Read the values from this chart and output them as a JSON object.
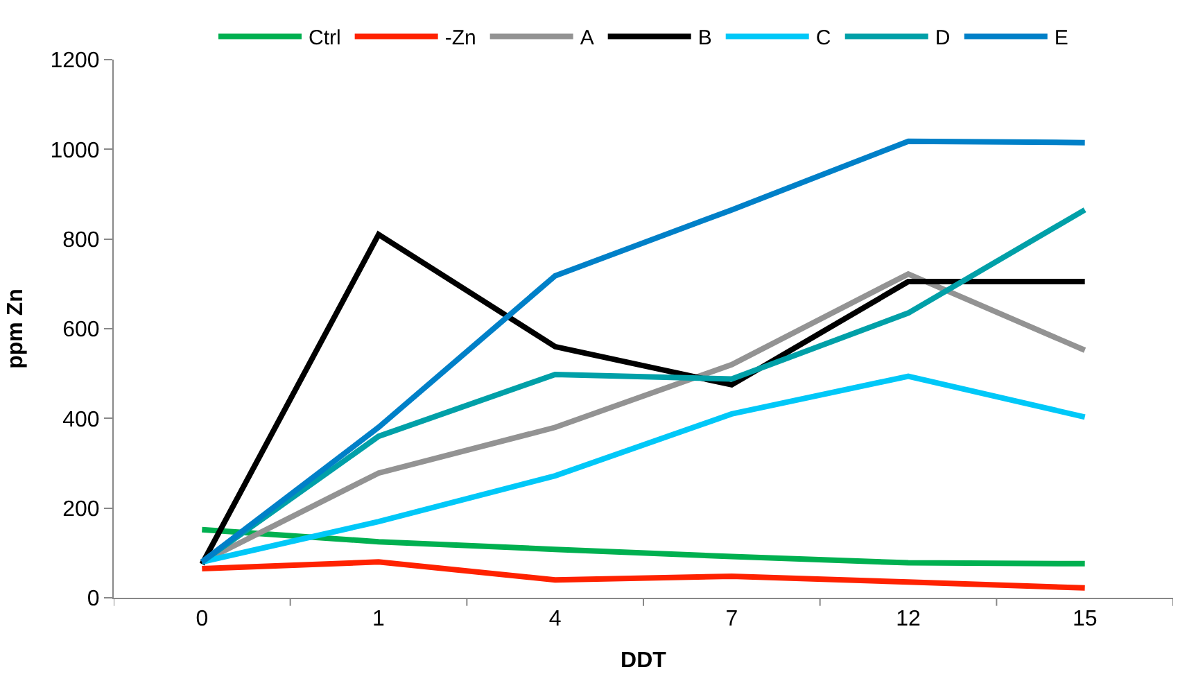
{
  "chart_data": {
    "type": "line",
    "xlabel": "DDT",
    "ylabel": "ppm Zn",
    "categories": [
      "0",
      "1",
      "4",
      "7",
      "12",
      "15"
    ],
    "ylim": [
      0,
      1200
    ],
    "yticks": [
      0,
      200,
      400,
      600,
      800,
      1000,
      1200
    ],
    "legend": "top",
    "marker": "none",
    "line_style": "solid",
    "series": [
      {
        "name": "Ctrl",
        "color": "#00b050",
        "values": [
          152,
          125,
          108,
          92,
          78,
          76
        ]
      },
      {
        "name": "-Zn",
        "color": "#ff2200",
        "values": [
          65,
          80,
          40,
          48,
          35,
          22
        ]
      },
      {
        "name": "A",
        "color": "#939393",
        "values": [
          80,
          278,
          380,
          520,
          722,
          552
        ]
      },
      {
        "name": "B",
        "color": "#000000",
        "values": [
          75,
          810,
          560,
          475,
          705,
          705
        ]
      },
      {
        "name": "C",
        "color": "#00c8f8",
        "values": [
          80,
          170,
          272,
          410,
          494,
          403
        ]
      },
      {
        "name": "D",
        "color": "#00a0a8",
        "values": [
          80,
          360,
          498,
          488,
          635,
          865
        ]
      },
      {
        "name": "E",
        "color": "#0080c8",
        "values": [
          80,
          380,
          718,
          865,
          1018,
          1015
        ]
      }
    ]
  }
}
